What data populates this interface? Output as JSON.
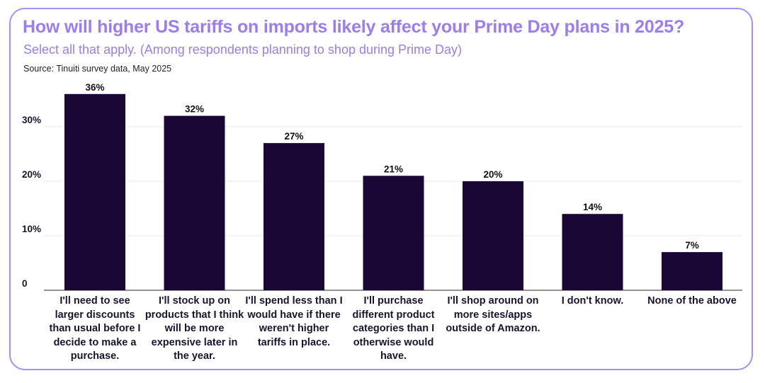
{
  "title": "How will higher US tariffs on imports likely affect your Prime Day plans in 2025?",
  "subtitle": "Select all that apply. (Among respondents planning to shop during Prime Day)",
  "source": "Source: Tinuiti survey data, May 2025",
  "colors": {
    "bar": "#1a0736",
    "accent": "#9b7cf2",
    "border": "#a98ef5",
    "grid": "#e8e8ee"
  },
  "chart_data": {
    "type": "bar",
    "title": "How will higher US tariffs on imports likely affect your Prime Day plans in 2025?",
    "xlabel": "",
    "ylabel": "",
    "ylim": [
      0,
      36
    ],
    "yticks": [
      {
        "value": 0,
        "label": "0"
      },
      {
        "value": 10,
        "label": "10%"
      },
      {
        "value": 20,
        "label": "20%"
      },
      {
        "value": 30,
        "label": "30%"
      }
    ],
    "categories": [
      "I'll need to see larger discounts than usual before I decide to make a purchase.",
      "I'll stock up on products that I think will be more expensive later in the year.",
      "I'll spend less than I would have if there weren't higher tariffs in place.",
      "I'll purchase different product categories than I otherwise would have.",
      "I'll shop around on more sites/apps outside of Amazon.",
      "I don't know.",
      "None of the above"
    ],
    "values": [
      36,
      32,
      27,
      21,
      20,
      14,
      7
    ],
    "value_labels": [
      "36%",
      "32%",
      "27%",
      "21%",
      "20%",
      "14%",
      "7%"
    ]
  }
}
